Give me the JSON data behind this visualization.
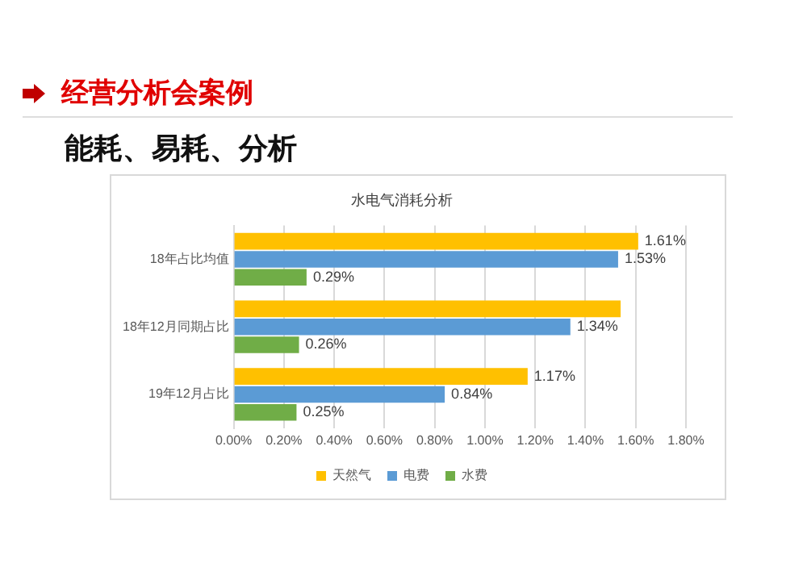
{
  "chart_data": {
    "type": "bar",
    "orientation": "horizontal",
    "title": "水电气消耗分析",
    "annotations": [
      "经营分析会案例",
      "能耗、易耗、分析"
    ],
    "categories": [
      "18年占比均值",
      "18年12月同期占比",
      "19年12月占比"
    ],
    "series": [
      {
        "name": "天然气",
        "color": "#ffc000",
        "values": [
          1.61,
          1.54,
          1.17
        ],
        "value_labels": [
          "1.61%",
          null,
          "1.17%"
        ]
      },
      {
        "name": "电费",
        "color": "#5b9bd5",
        "values": [
          1.53,
          1.34,
          0.84
        ],
        "value_labels": [
          "1.53%",
          "1.34%",
          "0.84%"
        ]
      },
      {
        "name": "水费",
        "color": "#70ad47",
        "values": [
          0.29,
          0.26,
          0.25
        ],
        "value_labels": [
          "0.29%",
          "0.26%",
          "0.25%"
        ]
      }
    ],
    "xlim": [
      0,
      1.8
    ],
    "xticks": [
      {
        "value": 0,
        "label": "0.00%"
      },
      {
        "value": 0.2,
        "label": "0.20%"
      },
      {
        "value": 0.4,
        "label": "0.40%"
      },
      {
        "value": 0.6,
        "label": "0.60%"
      },
      {
        "value": 0.8,
        "label": "0.80%"
      },
      {
        "value": 1,
        "label": "1.00%"
      },
      {
        "value": 1.2,
        "label": "1.20%"
      },
      {
        "value": 1.4,
        "label": "1.40%"
      },
      {
        "value": 1.6,
        "label": "1.60%"
      },
      {
        "value": 1.8,
        "label": "1.80%"
      }
    ],
    "grid": "x",
    "legend": "bottom"
  }
}
